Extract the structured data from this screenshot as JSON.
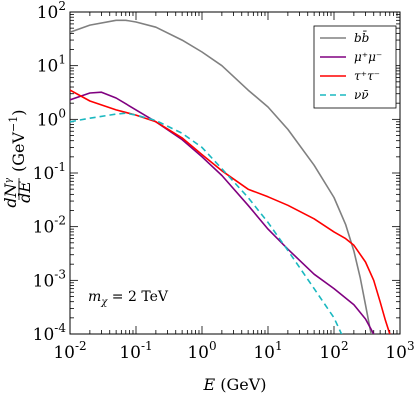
{
  "chart_data": {
    "type": "line",
    "xscale": "log",
    "yscale": "log",
    "xlim": [
      0.01,
      1000
    ],
    "ylim": [
      0.0001,
      100
    ],
    "xlabel": {
      "var": "E",
      "unit": " (GeV)"
    },
    "ylabel": {
      "num": "dN",
      "num_sup": "γ",
      "den": "dE",
      "unit": "(GeV",
      "unit_sup": "−1",
      "unit_close": ")"
    },
    "xticks": [
      {
        "value": 0.01,
        "base": "10",
        "exp": "-2"
      },
      {
        "value": 0.1,
        "base": "10",
        "exp": "-1"
      },
      {
        "value": 1,
        "base": "10",
        "exp": "0"
      },
      {
        "value": 10,
        "base": "10",
        "exp": "1"
      },
      {
        "value": 100,
        "base": "10",
        "exp": "2"
      },
      {
        "value": 1000,
        "base": "10",
        "exp": "3"
      }
    ],
    "yticks": [
      {
        "value": 0.0001,
        "base": "10",
        "exp": "-4"
      },
      {
        "value": 0.001,
        "base": "10",
        "exp": "-3"
      },
      {
        "value": 0.01,
        "base": "10",
        "exp": "-2"
      },
      {
        "value": 0.1,
        "base": "10",
        "exp": "-1"
      },
      {
        "value": 1,
        "base": "10",
        "exp": "0"
      },
      {
        "value": 10,
        "base": "10",
        "exp": "1"
      },
      {
        "value": 100,
        "base": "10",
        "exp": "2"
      }
    ],
    "annotation": {
      "text": "m",
      "sub": "χ",
      "rest": " = 2 TeV"
    },
    "legend_position": "top-right",
    "series": [
      {
        "name": "bb̄",
        "color": "#808080",
        "dash": "solid",
        "x": [
          0.01,
          0.02,
          0.05,
          0.07,
          0.1,
          0.2,
          0.5,
          1,
          2,
          5,
          10,
          20,
          50,
          100,
          150,
          200,
          250,
          300,
          350,
          400
        ],
        "y": [
          42,
          57,
          70,
          70,
          65,
          52,
          30,
          18,
          10,
          3.5,
          1.7,
          0.65,
          0.14,
          0.035,
          0.011,
          0.0035,
          0.0011,
          0.00035,
          0.00013,
          6e-05
        ]
      },
      {
        "name": "μ⁺μ⁻",
        "color": "#800080",
        "dash": "solid",
        "x": [
          0.01,
          0.02,
          0.03,
          0.05,
          0.1,
          0.2,
          0.5,
          1,
          2,
          5,
          10,
          20,
          50,
          100,
          200,
          300,
          400,
          500
        ],
        "y": [
          2.3,
          3.1,
          3.2,
          2.5,
          1.5,
          0.9,
          0.42,
          0.2,
          0.09,
          0.025,
          0.009,
          0.0038,
          0.0013,
          0.0007,
          0.00035,
          0.00019,
          0.0001,
          5e-05
        ]
      },
      {
        "name": "τ⁺τ⁻",
        "color": "#ff0000",
        "dash": "solid",
        "x": [
          0.01,
          0.02,
          0.05,
          0.1,
          0.2,
          0.5,
          1,
          2,
          5,
          10,
          20,
          50,
          100,
          150,
          200,
          300,
          400,
          500,
          600,
          700,
          800
        ],
        "y": [
          3.5,
          2.2,
          1.5,
          1.2,
          0.9,
          0.45,
          0.22,
          0.11,
          0.05,
          0.036,
          0.025,
          0.014,
          0.008,
          0.006,
          0.0045,
          0.0022,
          0.001,
          0.0004,
          0.00018,
          0.0001,
          5e-05
        ]
      },
      {
        "name": "νν̄",
        "color": "#1ab8c0",
        "dash": "6,4",
        "x": [
          0.01,
          0.02,
          0.05,
          0.07,
          0.1,
          0.2,
          0.5,
          1,
          2,
          5,
          10,
          20,
          50,
          100,
          130,
          160
        ],
        "y": [
          0.9,
          1.05,
          1.25,
          1.3,
          1.2,
          0.95,
          0.55,
          0.3,
          0.12,
          0.035,
          0.012,
          0.0036,
          0.0007,
          0.0002,
          0.0001,
          5e-05
        ]
      }
    ]
  }
}
